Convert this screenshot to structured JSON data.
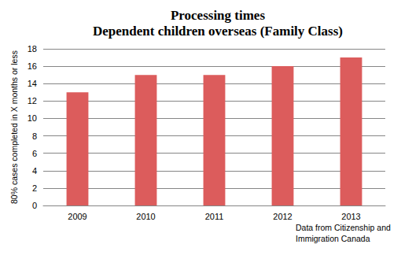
{
  "chart_data": {
    "type": "bar",
    "title": "Processing times",
    "subtitle": "Dependent children overseas (Family Class)",
    "y_label": "80% cases completed in X months or less",
    "annotation": "Data from Citizenship and Immigration Canada",
    "categories": [
      "2009",
      "2010",
      "2011",
      "2012",
      "2013"
    ],
    "values": [
      13,
      15,
      15,
      16,
      17
    ],
    "color": "#dc5c5c",
    "ylim": [
      0,
      18
    ],
    "yticks": [
      0,
      2,
      4,
      6,
      8,
      10,
      12,
      14,
      16,
      18
    ],
    "grid": true
  }
}
